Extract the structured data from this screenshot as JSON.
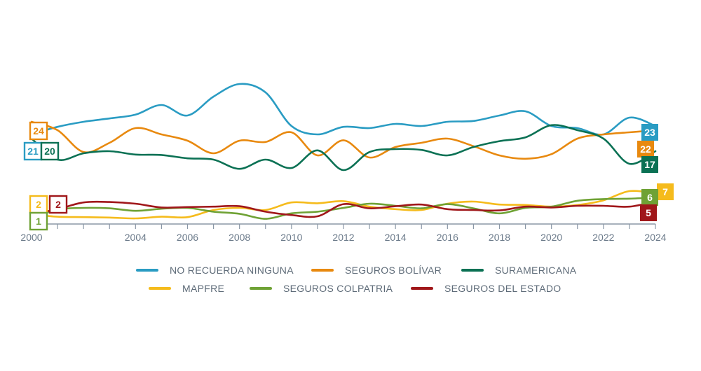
{
  "chart_data": {
    "type": "line",
    "title": "",
    "xlabel": "",
    "ylabel": "",
    "x_range": [
      2000,
      2024
    ],
    "y_range": [
      0,
      50
    ],
    "x_ticks": [
      "2000",
      "2004",
      "2006",
      "2008",
      "2010",
      "2012",
      "2014",
      "2016",
      "2018",
      "2020",
      "2022",
      "2024"
    ],
    "grid": false,
    "legend_position": "bottom",
    "series": [
      {
        "name": "NO RECUERDA NINGUNA",
        "color": "#2a9cc3",
        "points": [
          [
            2000,
            21
          ],
          [
            2001,
            22.8
          ],
          [
            2002,
            24
          ],
          [
            2003,
            24.8
          ],
          [
            2004,
            25.7
          ],
          [
            2005,
            28
          ],
          [
            2006,
            25.5
          ],
          [
            2007,
            30
          ],
          [
            2008,
            33
          ],
          [
            2009,
            31
          ],
          [
            2010,
            23
          ],
          [
            2011,
            21
          ],
          [
            2012,
            22.8
          ],
          [
            2013,
            22.5
          ],
          [
            2014,
            23.5
          ],
          [
            2015,
            23
          ],
          [
            2016,
            24
          ],
          [
            2017,
            24.2
          ],
          [
            2018,
            25.5
          ],
          [
            2019,
            26.5
          ],
          [
            2020,
            23
          ],
          [
            2021,
            22.5
          ],
          [
            2022,
            21
          ],
          [
            2023,
            25
          ],
          [
            2024,
            23
          ]
        ],
        "start_label": "21",
        "end_label": "23"
      },
      {
        "name": "SEGUROS BOLÍVAR",
        "color": "#e8890f",
        "points": [
          [
            2000,
            24
          ],
          [
            2001,
            22
          ],
          [
            2002,
            16.8
          ],
          [
            2003,
            19
          ],
          [
            2004,
            22.5
          ],
          [
            2005,
            21
          ],
          [
            2006,
            19.5
          ],
          [
            2007,
            16.5
          ],
          [
            2008,
            19.5
          ],
          [
            2009,
            19.2
          ],
          [
            2010,
            21.5
          ],
          [
            2011,
            16
          ],
          [
            2012,
            19.6
          ],
          [
            2013,
            15.5
          ],
          [
            2014,
            18
          ],
          [
            2015,
            19
          ],
          [
            2016,
            20
          ],
          [
            2017,
            18.2
          ],
          [
            2018,
            16
          ],
          [
            2019,
            15.2
          ],
          [
            2020,
            16.3
          ],
          [
            2021,
            20
          ],
          [
            2022,
            21
          ],
          [
            2023,
            21.5
          ],
          [
            2024,
            22
          ]
        ],
        "start_label": "24",
        "end_label": "22"
      },
      {
        "name": "SURAMERICANA",
        "color": "#0b7154",
        "points": [
          [
            2000,
            20
          ],
          [
            2001,
            15
          ],
          [
            2002,
            16.5
          ],
          [
            2003,
            17
          ],
          [
            2004,
            16.2
          ],
          [
            2005,
            16.1
          ],
          [
            2006,
            15.3
          ],
          [
            2007,
            15
          ],
          [
            2008,
            12.8
          ],
          [
            2009,
            15
          ],
          [
            2010,
            13
          ],
          [
            2011,
            17.2
          ],
          [
            2012,
            12.5
          ],
          [
            2013,
            16.8
          ],
          [
            2014,
            17.5
          ],
          [
            2015,
            17.3
          ],
          [
            2016,
            16
          ],
          [
            2017,
            18
          ],
          [
            2018,
            19.4
          ],
          [
            2019,
            20.3
          ],
          [
            2020,
            23.2
          ],
          [
            2021,
            22
          ],
          [
            2022,
            20
          ],
          [
            2023,
            14
          ],
          [
            2024,
            17
          ]
        ],
        "start_label": "20",
        "end_label": "17"
      },
      {
        "name": "MAPFRE",
        "color": "#f5bb1c",
        "points": [
          [
            2000,
            2
          ],
          [
            2001,
            1.4
          ],
          [
            2002,
            1.3
          ],
          [
            2003,
            1.2
          ],
          [
            2004,
            1
          ],
          [
            2005,
            1.4
          ],
          [
            2006,
            1.3
          ],
          [
            2007,
            3
          ],
          [
            2008,
            3.5
          ],
          [
            2009,
            3
          ],
          [
            2010,
            4.8
          ],
          [
            2011,
            4.6
          ],
          [
            2012,
            5.1
          ],
          [
            2013,
            3.8
          ],
          [
            2014,
            3.2
          ],
          [
            2015,
            3
          ],
          [
            2016,
            4.5
          ],
          [
            2017,
            5
          ],
          [
            2018,
            4.3
          ],
          [
            2019,
            4.2
          ],
          [
            2020,
            3.8
          ],
          [
            2021,
            4.2
          ],
          [
            2022,
            5.3
          ],
          [
            2023,
            7.5
          ],
          [
            2024,
            7
          ]
        ],
        "start_label": "2",
        "end_label": "7"
      },
      {
        "name": "SEGUROS COLPATRIA",
        "color": "#6fa235",
        "points": [
          [
            2000,
            1
          ],
          [
            2001,
            3.1
          ],
          [
            2002,
            3.5
          ],
          [
            2003,
            3.4
          ],
          [
            2004,
            2.8
          ],
          [
            2005,
            3.3
          ],
          [
            2006,
            3.5
          ],
          [
            2007,
            2.6
          ],
          [
            2008,
            2.1
          ],
          [
            2009,
            0.9
          ],
          [
            2010,
            2.2
          ],
          [
            2011,
            2.6
          ],
          [
            2012,
            3.5
          ],
          [
            2013,
            4.5
          ],
          [
            2014,
            4
          ],
          [
            2015,
            3.4
          ],
          [
            2016,
            4.4
          ],
          [
            2017,
            3.4
          ],
          [
            2018,
            2.2
          ],
          [
            2019,
            3.5
          ],
          [
            2020,
            3.8
          ],
          [
            2021,
            5.2
          ],
          [
            2022,
            5.6
          ],
          [
            2023,
            5.7
          ],
          [
            2024,
            6
          ]
        ],
        "start_label": "1",
        "end_label": "6"
      },
      {
        "name": "SEGUROS DEL ESTADO",
        "color": "#a0171a",
        "points": [
          [
            2000,
            2
          ],
          [
            2001,
            3.2
          ],
          [
            2002,
            4.8
          ],
          [
            2003,
            4.9
          ],
          [
            2004,
            4.5
          ],
          [
            2005,
            3.6
          ],
          [
            2006,
            3.7
          ],
          [
            2007,
            3.8
          ],
          [
            2008,
            3.9
          ],
          [
            2009,
            2.6
          ],
          [
            2010,
            1.8
          ],
          [
            2011,
            1.5
          ],
          [
            2012,
            4.4
          ],
          [
            2013,
            3.4
          ],
          [
            2014,
            3.9
          ],
          [
            2015,
            4.3
          ],
          [
            2016,
            3.2
          ],
          [
            2017,
            3
          ],
          [
            2018,
            2.9
          ],
          [
            2019,
            3.8
          ],
          [
            2020,
            3.6
          ],
          [
            2021,
            4
          ],
          [
            2022,
            4
          ],
          [
            2023,
            3.8
          ],
          [
            2024,
            5
          ]
        ],
        "start_label": "2",
        "end_label": "5"
      }
    ]
  }
}
